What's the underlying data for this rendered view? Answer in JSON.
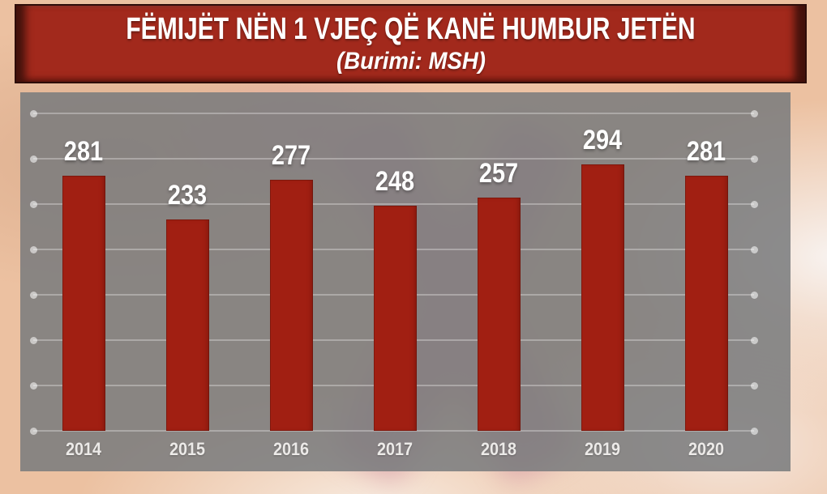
{
  "header": {
    "title": "FËMIJËT NËN 1 VJEÇ QË KANË HUMBUR JETËN",
    "subtitle": "(Burimi: MSH)"
  },
  "colors": {
    "header_bg": "#a2291c",
    "header_edge": "#43120c",
    "header_border": "#2e0d09",
    "title_text": "#ffffff",
    "bar": "#a11f12",
    "panel_overlay": "rgba(120,122,124,0.85)",
    "gridline": "rgba(255,255,255,0.30)",
    "grid_dot": "rgba(255,255,255,0.55)",
    "value_label": "#ffffff",
    "year_label": "#eceae8",
    "bg_base": "#ecc1a1"
  },
  "chart_data": {
    "type": "bar",
    "title": "FËMIJËT NËN 1 VJEÇ QË KANË HUMBUR JETËN",
    "subtitle": "(Burimi: MSH)",
    "categories": [
      "2014",
      "2015",
      "2016",
      "2017",
      "2018",
      "2019",
      "2020"
    ],
    "values": [
      281,
      233,
      277,
      248,
      257,
      294,
      281
    ],
    "xlabel": "",
    "ylabel": "",
    "ylim": [
      0,
      350
    ],
    "grid": true,
    "gridline_step": 50,
    "legend": false,
    "value_labels": true
  }
}
